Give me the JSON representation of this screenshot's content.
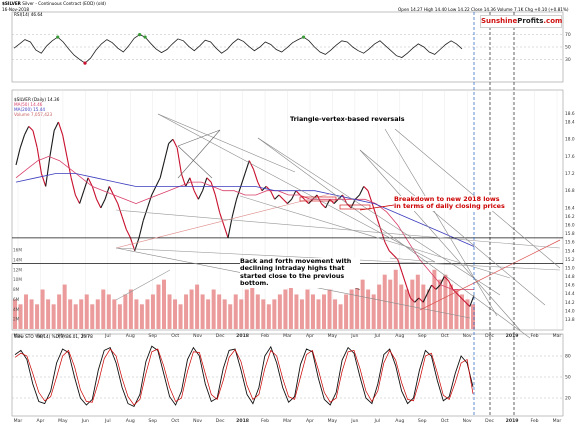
{
  "header": {
    "symbol": "$SILVER",
    "description": "Silver - Continuous Contract (EOD) (old)",
    "date": "16-Nov-2018",
    "ohlc": "Open 14.27  High 14.40  Low 14.22  Close 14.36  Volume 7.1K  Chg +0.10 (+0.81%)",
    "rsi_legend": "RSI(14) 46.64",
    "price_legend": "$SILVER (Daily) 14.36",
    "ma_legend_1": "MA(50) 14.46",
    "ma_legend_2": "MA(200) 15.44",
    "ma_legend_3": "Volume 7,057,423",
    "sto_legend": "Slow STO %K(14) %D(3) 36.01, 25.78"
  },
  "brand": {
    "part1": "Sunshine",
    "part2": "Profits",
    "part3": ".com"
  },
  "annotations": {
    "triangle": "Triangle-vertex-based reversals",
    "breakdown": "Breakdown to new 2018 lows in terms of daily closing prices",
    "back_forth": "Back and forth movement with declining intraday highs that started close to the previous bottom."
  },
  "colors": {
    "price": "#1a1a1a",
    "price_down": "#c8102e",
    "ma50": "#d9406a",
    "ma200": "#3c3cbe",
    "volume": "#e78a8a",
    "rsi_fill_top": "#3a9a3a",
    "rsi_fill_bottom": "#c8102e",
    "annotation_red": "#cc0000",
    "vertical_blue": "#2060c0"
  },
  "chart_data": [
    {
      "type": "line",
      "title": "RSI(14)",
      "ylim": [
        0,
        100
      ],
      "y_ticks": [
        "70",
        "50",
        "30"
      ],
      "series": [
        {
          "name": "RSI(14)",
          "values": [
            48,
            55,
            62,
            58,
            45,
            40,
            52,
            60,
            66,
            58,
            47,
            37,
            30,
            24,
            32,
            45,
            55,
            62,
            57,
            48,
            42,
            52,
            64,
            70,
            66,
            56,
            47,
            41,
            46,
            55,
            63,
            60,
            51,
            44,
            52,
            61,
            58,
            48,
            40,
            46,
            56,
            63,
            59,
            51,
            44,
            50,
            58,
            54,
            46,
            42,
            49,
            57,
            62,
            66,
            60,
            50,
            42,
            38,
            45,
            53,
            60,
            58,
            50,
            44,
            40,
            47,
            55,
            60,
            52,
            44,
            36,
            33,
            40,
            48,
            55,
            50,
            42,
            38,
            46,
            54,
            60,
            55,
            47
          ]
        }
      ]
    },
    {
      "type": "line",
      "title": "$SILVER (Daily)",
      "ylim": [
        13.6,
        19.1
      ],
      "x_tick_labels": [
        "Mar",
        "Apr",
        "May",
        "Jun",
        "Jul",
        "Aug",
        "Sep",
        "Oct",
        "Nov",
        "Dec",
        "2018",
        "Feb",
        "Mar",
        "Apr",
        "May",
        "Jun",
        "Jul",
        "Aug",
        "Sep",
        "Oct",
        "Nov",
        "Dec",
        "2019",
        "Feb",
        "Mar"
      ],
      "y_ticks": [
        "18.6",
        "18.4",
        "18.0",
        "17.6",
        "17.2",
        "16.8",
        "16.4",
        "16.2",
        "16.0",
        "15.8",
        "15.6",
        "15.4",
        "15.2",
        "15.0",
        "14.8",
        "14.6",
        "14.4",
        "14.2",
        "14.0",
        "13.8"
      ],
      "series": [
        {
          "name": "Price",
          "values": [
            17.4,
            17.8,
            18.1,
            18.3,
            18.2,
            17.8,
            17.2,
            16.9,
            17.6,
            18.2,
            18.4,
            18.1,
            17.6,
            17.1,
            16.7,
            16.5,
            16.8,
            17.1,
            16.9,
            16.6,
            16.4,
            16.6,
            16.9,
            16.7,
            16.5,
            16.2,
            15.9,
            15.7,
            15.4,
            15.7,
            16.1,
            16.4,
            16.7,
            16.9,
            17.1,
            17.5,
            17.9,
            18.0,
            17.8,
            17.2,
            16.9,
            17.1,
            16.8,
            16.6,
            16.8,
            17.1,
            17.0,
            16.7,
            16.3,
            16.0,
            15.7,
            16.2,
            16.6,
            16.9,
            17.2,
            17.5,
            17.3,
            17.0,
            16.8,
            16.9,
            16.8,
            16.6,
            16.7,
            16.6,
            16.5,
            16.6,
            16.8,
            16.7,
            16.6,
            16.5,
            16.6,
            16.7,
            16.5,
            16.4,
            16.6,
            16.5,
            16.6,
            16.7,
            16.5,
            16.4,
            16.6,
            16.7,
            16.9,
            16.8,
            16.5,
            16.2,
            15.9,
            15.6,
            15.4,
            15.3,
            15.2,
            14.9,
            14.6,
            14.3,
            14.2,
            14.3,
            14.2,
            14.4,
            14.6,
            14.5,
            14.6,
            14.8,
            14.7,
            14.5,
            14.4,
            14.3,
            14.2,
            14.1,
            14.36
          ]
        },
        {
          "name": "MA(50)",
          "values": [
            17.1,
            17.3,
            17.5,
            17.6,
            17.5,
            17.3,
            17.1,
            16.9,
            16.8,
            16.7,
            16.6,
            16.5,
            16.6,
            16.7,
            16.8,
            16.9,
            17.0,
            17.0,
            16.9,
            16.8,
            16.8,
            16.7,
            16.7,
            16.8,
            16.8,
            16.7,
            16.7,
            16.6,
            16.6,
            16.6,
            16.6,
            16.6,
            16.6,
            16.5,
            16.3,
            16.0,
            15.6,
            15.2,
            14.9,
            14.6,
            14.5,
            14.5,
            14.5
          ]
        },
        {
          "name": "MA(200)",
          "values": [
            17.0,
            17.1,
            17.2,
            17.2,
            17.1,
            17.0,
            16.9,
            16.9,
            16.9,
            16.9,
            16.9,
            16.9,
            16.9,
            16.8,
            16.8,
            16.8,
            16.7,
            16.6,
            16.5,
            16.3,
            16.1,
            15.9,
            15.7,
            15.5
          ]
        }
      ]
    },
    {
      "type": "bar",
      "title": "Volume",
      "ylim": [
        0,
        16
      ],
      "y_ticks": [
        "16M",
        "14M",
        "12M",
        "10M",
        "8M",
        "6M",
        "4M",
        "2M"
      ],
      "values": [
        6,
        5,
        7,
        6,
        5,
        8,
        6,
        5,
        7,
        9,
        6,
        5,
        6,
        7,
        5,
        6,
        8,
        7,
        6,
        5,
        7,
        8,
        6,
        5,
        6,
        7,
        9,
        10,
        7,
        6,
        5,
        7,
        8,
        9,
        7,
        6,
        8,
        7,
        6,
        5,
        7,
        6,
        8,
        9,
        7,
        6,
        5,
        6,
        7,
        8,
        9,
        7,
        6,
        8,
        7,
        6,
        7,
        8,
        6,
        5,
        7,
        8,
        9,
        10,
        8,
        7,
        9,
        11,
        10,
        12,
        9,
        8,
        10,
        11,
        9,
        8,
        12,
        10,
        11,
        9,
        8,
        7,
        6,
        5
      ]
    },
    {
      "type": "line",
      "title": "Slow STO %K(14) %D(3)",
      "ylim": [
        0,
        100
      ],
      "y_ticks": [
        "80",
        "50",
        "20"
      ],
      "series": [
        {
          "name": "%K",
          "values": [
            82,
            88,
            75,
            40,
            15,
            12,
            30,
            70,
            90,
            85,
            50,
            20,
            10,
            18,
            60,
            88,
            92,
            70,
            35,
            12,
            8,
            25,
            72,
            94,
            88,
            55,
            22,
            10,
            30,
            75,
            92,
            80,
            40,
            15,
            20,
            62,
            88,
            90,
            60,
            25,
            12,
            35,
            80,
            93,
            70,
            35,
            14,
            22,
            68,
            90,
            86,
            48,
            18,
            10,
            28,
            74,
            92,
            84,
            50,
            20,
            12,
            40,
            82,
            90,
            66,
            30,
            12,
            20,
            60,
            88,
            80,
            45,
            16,
            22,
            55,
            80,
            70,
            36
          ]
        },
        {
          "name": "%D",
          "values": [
            78,
            84,
            80,
            55,
            28,
            16,
            22,
            50,
            80,
            88,
            65,
            32,
            15,
            14,
            42,
            76,
            90,
            80,
            48,
            22,
            10,
            18,
            55,
            86,
            90,
            66,
            35,
            15,
            20,
            58,
            86,
            85,
            55,
            25,
            18,
            45,
            78,
            89,
            72,
            38,
            18,
            25,
            62,
            88,
            80,
            48,
            22,
            18,
            50,
            82,
            88,
            60,
            28,
            14,
            20,
            58,
            86,
            88,
            62,
            30,
            15,
            30,
            70,
            88,
            74,
            42,
            18,
            16,
            45,
            80,
            84,
            56,
            24,
            18,
            42,
            70,
            75,
            26
          ]
        }
      ]
    }
  ]
}
